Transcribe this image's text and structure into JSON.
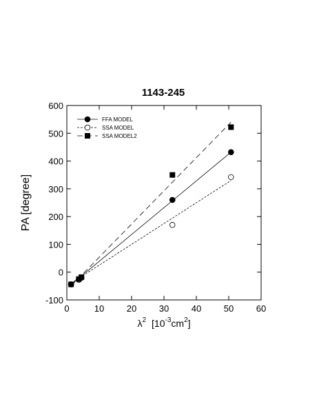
{
  "chart_data": {
    "type": "scatter",
    "title": "1143-245",
    "ylabel": "PA [degree]",
    "xlabel": [
      "λ",
      "2",
      "[10",
      "-3",
      "cm",
      "2",
      "]"
    ],
    "xlim": [
      0,
      60
    ],
    "xticks": [
      0,
      10,
      20,
      30,
      40,
      50,
      60
    ],
    "ylim": [
      -100,
      600
    ],
    "yticks": [
      -100,
      0,
      100,
      200,
      300,
      400,
      500,
      600
    ],
    "legend": "upper left",
    "series": [
      {
        "name": "FFA MODEL",
        "color": "#000000",
        "marker": "circle-filled",
        "dash": "none",
        "x": [
          1.3,
          3.7,
          4.5,
          32.6,
          50.7
        ],
        "values": [
          -44,
          -27,
          -20,
          260,
          432
        ],
        "fit_x": [
          1.3,
          50.7
        ],
        "fit_y": [
          -45,
          432
        ]
      },
      {
        "name": "SSA MODEL",
        "color": "#000000",
        "marker": "circle-open",
        "dash": "3,2",
        "x": [
          1.3,
          3.7,
          4.5,
          32.6,
          50.7
        ],
        "values": [
          -44,
          -27,
          -20,
          170,
          342
        ],
        "fit_x": [
          1.3,
          50.7
        ],
        "fit_y": [
          -40,
          330
        ]
      },
      {
        "name": "SSA MODEL2",
        "color": "#000000",
        "marker": "square",
        "dash": "8,5",
        "x": [
          1.3,
          3.7,
          4.5,
          32.6,
          50.7
        ],
        "values": [
          -44,
          -25,
          -18,
          350,
          522
        ],
        "fit_x": [
          1.3,
          50.7
        ],
        "fit_y": [
          -50,
          540
        ]
      }
    ]
  }
}
